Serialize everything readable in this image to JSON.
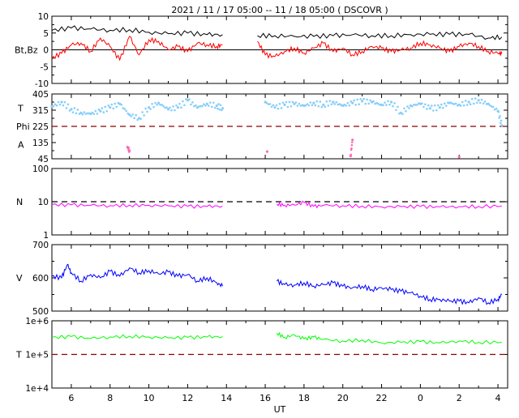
{
  "title": "2021 / 11 / 17   05:00 -- 11 / 18   05:00 ( DSCOVR )",
  "xlabel": "UT",
  "x_ticks": [
    "6",
    "8",
    "10",
    "12",
    "14",
    "16",
    "18",
    "20",
    "22",
    "0",
    "2",
    "4"
  ],
  "colors": {
    "bt": "#000000",
    "bz": "#ff0000",
    "theta": "#87cefa",
    "phi": "#ff69b4",
    "density": "#ff00ff",
    "speed": "#0000ff",
    "temperature": "#00ff00",
    "ref_dashed": "#8b0000"
  },
  "chart_data": [
    {
      "type": "line",
      "ylabel": "Bt,Bz",
      "ylim": [
        -10,
        10
      ],
      "y_ticks": [
        "10",
        "5",
        "0",
        "-5",
        "-10"
      ],
      "reference_line": 0,
      "x_range_hours": [
        5,
        28.5
      ],
      "data_gap_hours": [
        14.0,
        15.5
      ],
      "series": [
        {
          "key": "bt",
          "x": [
            5.0,
            6.0,
            7.0,
            8.0,
            9.0,
            10.0,
            11.0,
            12.0,
            13.0,
            13.8,
            15.6,
            16.5,
            17.5,
            18.5,
            19.5,
            20.5,
            21.5,
            22.5,
            23.5,
            24.5,
            25.5,
            26.5,
            27.5,
            28.2
          ],
          "y": [
            5.8,
            6.5,
            6.2,
            5.8,
            6.0,
            5.2,
            4.8,
            5.0,
            4.5,
            4.5,
            4.2,
            4.2,
            4.0,
            4.0,
            4.2,
            4.5,
            4.2,
            4.2,
            4.5,
            4.6,
            4.6,
            4.6,
            3.5,
            3.8
          ]
        },
        {
          "key": "bz",
          "x": [
            5.0,
            5.5,
            6.0,
            6.5,
            7.0,
            7.5,
            8.0,
            8.5,
            9.0,
            9.5,
            10.0,
            10.5,
            11.0,
            11.5,
            12.0,
            12.5,
            13.0,
            13.5,
            13.8,
            15.6,
            16.0,
            16.5,
            17.0,
            17.5,
            18.0,
            18.5,
            19.0,
            19.5,
            20.0,
            20.5,
            21.0,
            21.5,
            22.0,
            22.5,
            23.0,
            23.5,
            24.0,
            24.5,
            25.0,
            25.5,
            26.0,
            26.5,
            27.0,
            27.5,
            28.0,
            28.2
          ],
          "y": [
            -2.5,
            -1.0,
            1.5,
            2.0,
            -0.5,
            3.5,
            1.0,
            -3.0,
            4.0,
            -1.5,
            3.0,
            2.5,
            0.0,
            1.0,
            -0.5,
            2.0,
            1.5,
            1.0,
            1.5,
            2.5,
            -1.5,
            -2.0,
            -0.5,
            0.5,
            -1.0,
            0.5,
            2.0,
            -0.5,
            0.5,
            -1.5,
            -0.5,
            1.0,
            0.5,
            -0.5,
            0.0,
            0.5,
            2.0,
            1.5,
            0.5,
            -0.5,
            1.0,
            2.0,
            1.0,
            -0.5,
            -1.0,
            -1.2
          ]
        }
      ]
    },
    {
      "type": "scatter",
      "ylabels": [
        "T",
        "Phi",
        "A"
      ],
      "ylim": [
        45,
        405
      ],
      "y_ticks": [
        "405",
        "315",
        "225",
        "135",
        "45"
      ],
      "reference_line": 225,
      "series": [
        {
          "key": "theta",
          "x": [
            5.0,
            5.5,
            6.0,
            6.5,
            7.0,
            7.5,
            8.0,
            8.5,
            9.0,
            9.5,
            10.0,
            10.5,
            11.0,
            11.5,
            12.0,
            12.5,
            13.0,
            13.5,
            13.8,
            16.0,
            16.5,
            17.0,
            17.5,
            18.0,
            18.5,
            19.0,
            19.5,
            20.0,
            20.5,
            21.0,
            21.5,
            22.0,
            22.5,
            23.0,
            23.5,
            24.0,
            24.5,
            25.0,
            25.5,
            26.0,
            26.5,
            27.0,
            27.5,
            28.0,
            28.2
          ],
          "y": [
            335,
            360,
            320,
            300,
            295,
            310,
            330,
            350,
            290,
            270,
            330,
            355,
            320,
            330,
            370,
            330,
            350,
            340,
            325,
            360,
            330,
            345,
            350,
            340,
            355,
            345,
            360,
            340,
            355,
            365,
            360,
            345,
            360,
            300,
            340,
            350,
            325,
            330,
            355,
            345,
            360,
            370,
            350,
            310,
            230
          ]
        },
        {
          "key": "phi",
          "x": [
            8.9,
            9.0,
            16.1,
            20.4,
            20.5,
            26.0
          ],
          "y": [
            110,
            90,
            85,
            60,
            150,
            55
          ]
        }
      ]
    },
    {
      "type": "line",
      "ylabel": "N",
      "yscale": "log",
      "ylim": [
        1,
        100
      ],
      "y_ticks": [
        "100",
        "10",
        "1"
      ],
      "reference_line": 10,
      "series": [
        {
          "key": "density",
          "x": [
            5.0,
            6.0,
            7.0,
            8.0,
            9.0,
            10.0,
            11.0,
            12.0,
            13.0,
            13.8,
            16.6,
            17.0,
            17.5,
            18.0,
            18.5,
            19.0,
            20.0,
            21.0,
            22.0,
            23.0,
            24.0,
            25.0,
            26.0,
            27.0,
            28.2
          ],
          "y": [
            8.2,
            8.0,
            7.8,
            7.6,
            7.9,
            7.8,
            7.5,
            7.3,
            7.2,
            7.4,
            8.5,
            7.9,
            8.0,
            9.5,
            7.2,
            7.8,
            7.6,
            7.4,
            7.0,
            7.1,
            7.2,
            7.0,
            7.1,
            7.2,
            7.4
          ]
        }
      ]
    },
    {
      "type": "line",
      "ylabel": "V",
      "ylim": [
        500,
        700
      ],
      "y_ticks": [
        "700",
        "600",
        "500"
      ],
      "series": [
        {
          "key": "speed",
          "x": [
            5.0,
            5.5,
            5.8,
            6.0,
            6.5,
            7.0,
            7.5,
            8.0,
            8.5,
            9.0,
            9.5,
            10.0,
            10.5,
            11.0,
            11.5,
            12.0,
            12.5,
            13.0,
            13.5,
            13.8,
            16.6,
            17.0,
            17.5,
            18.0,
            18.5,
            19.0,
            19.5,
            20.0,
            20.5,
            21.0,
            21.5,
            22.0,
            22.5,
            23.0,
            23.5,
            24.0,
            24.5,
            25.0,
            25.5,
            26.0,
            26.5,
            27.0,
            27.5,
            28.0,
            28.2
          ],
          "y": [
            605,
            600,
            640,
            615,
            590,
            610,
            600,
            620,
            605,
            630,
            615,
            622,
            612,
            618,
            605,
            610,
            590,
            600,
            585,
            575,
            590,
            580,
            578,
            585,
            575,
            580,
            585,
            575,
            570,
            575,
            565,
            570,
            565,
            560,
            555,
            545,
            535,
            535,
            530,
            530,
            525,
            540,
            525,
            535,
            550
          ]
        }
      ]
    },
    {
      "type": "line",
      "ylabel": "T",
      "yscale": "log",
      "ylim": [
        10000,
        1000000
      ],
      "y_ticks": [
        "1e+6",
        "1e+5",
        "1e+4"
      ],
      "reference_line": 100000,
      "series": [
        {
          "key": "temperature",
          "x": [
            5.0,
            6.0,
            7.0,
            8.0,
            9.0,
            10.0,
            11.0,
            12.0,
            13.0,
            13.8,
            16.6,
            17.0,
            17.5,
            18.0,
            18.5,
            19.0,
            20.0,
            21.0,
            22.0,
            23.0,
            24.0,
            25.0,
            26.0,
            27.0,
            28.2
          ],
          "y": [
            320000,
            340000,
            300000,
            330000,
            350000,
            330000,
            310000,
            320000,
            330000,
            340000,
            430000,
            320000,
            380000,
            290000,
            330000,
            280000,
            250000,
            270000,
            220000,
            230000,
            240000,
            220000,
            250000,
            230000,
            230000
          ]
        }
      ]
    }
  ]
}
